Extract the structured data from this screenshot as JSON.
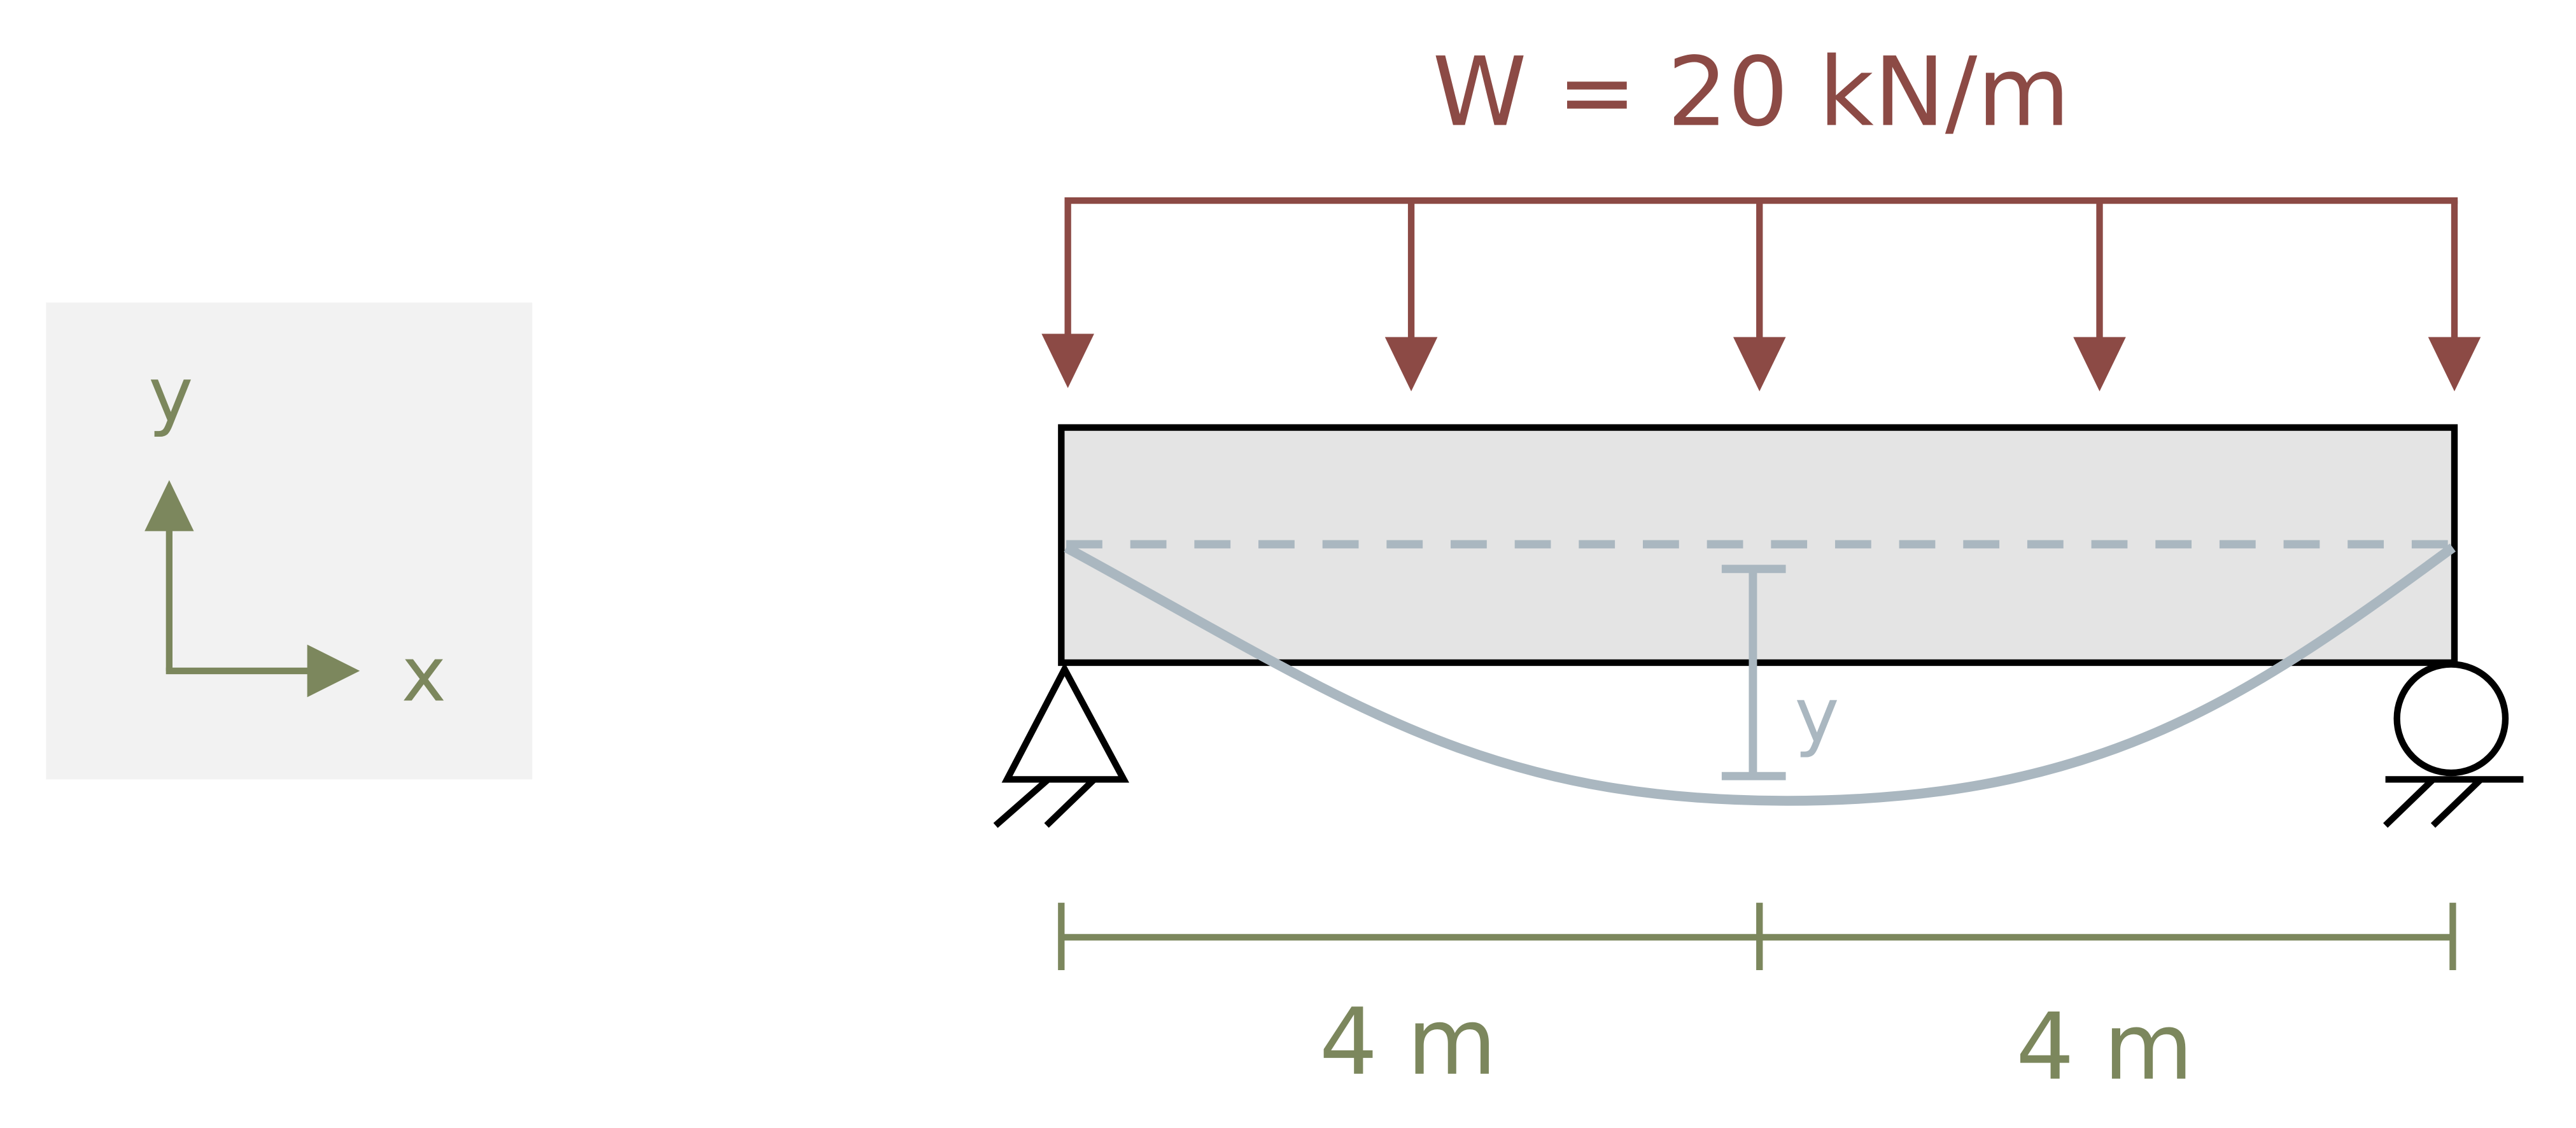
{
  "load": {
    "label": "W = 20 kN/m",
    "color": "#8c4a45"
  },
  "coordinate_system": {
    "x_label": "x",
    "y_label": "y",
    "color": "#7c875d",
    "panel_color": "#f2f2f2"
  },
  "deflection": {
    "label": "y",
    "color": "#aab7c0"
  },
  "dimensions": {
    "left_span": "4 m",
    "right_span": "4 m",
    "color": "#7c875d"
  },
  "beam": {
    "fill": "#e4e4e4",
    "stroke": "#000000"
  },
  "supports": {
    "left": "pin",
    "right": "roller"
  }
}
